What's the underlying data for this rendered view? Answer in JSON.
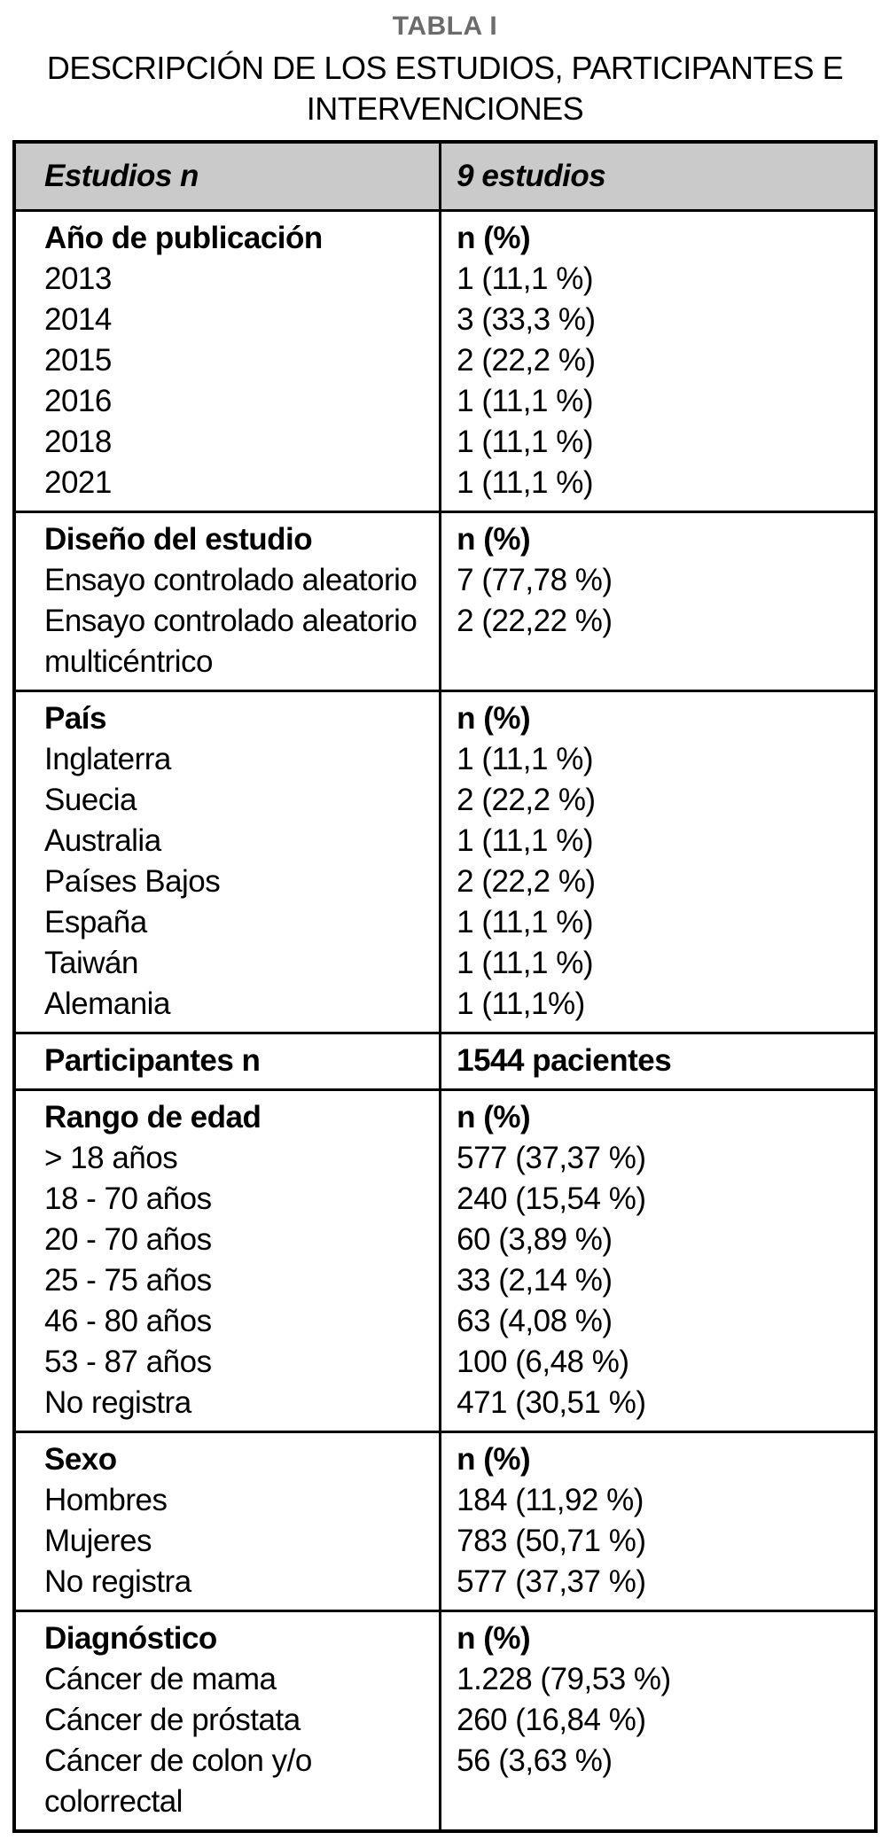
{
  "title": "TABLA I",
  "subtitle_lines": [
    "DESCRIPCIÓN DE LOS ESTUDIOS, PARTICIPANTES E",
    "INTERVENCIONES"
  ],
  "colors": {
    "header_bg": "#cacaca",
    "title_gray": "#6b6b6b",
    "border": "#000000"
  },
  "table": {
    "header": {
      "left": "Estudios n",
      "right": "9 estudios"
    },
    "sections": [
      {
        "label": "Año de publicación",
        "value_label": "n (%)",
        "items": [
          "2013",
          "2014",
          "2015",
          "2016",
          "2018",
          "2021"
        ],
        "values": [
          "1 (11,1 %)",
          "3 (33,3 %)",
          "2 (22,2 %)",
          "1 (11,1 %)",
          "1 (11,1 %)",
          "1 (11,1 %)"
        ]
      },
      {
        "label": "Diseño del estudio",
        "value_label": "n (%)",
        "items": [
          "Ensayo controlado aleatorio",
          "Ensayo controlado aleatorio multicéntrico"
        ],
        "values": [
          "7 (77,78 %)",
          "2 (22,22 %)"
        ]
      },
      {
        "label": "País",
        "value_label": "n (%)",
        "items": [
          "Inglaterra",
          "Suecia",
          "Australia",
          "Países Bajos",
          "España",
          "Taiwán",
          "Alemania"
        ],
        "values": [
          "1 (11,1 %)",
          "2 (22,2 %)",
          "1 (11,1 %)",
          "2 (22,2 %)",
          "1 (11,1 %)",
          "1 (11,1 %)",
          "1 (11,1%)"
        ]
      },
      {
        "label": "Participantes n",
        "value_label": "1544 pacientes",
        "items": [],
        "values": []
      },
      {
        "label": "Rango de edad",
        "value_label": "n (%)",
        "items": [
          "> 18 años",
          "18 - 70 años",
          "20 - 70 años",
          "25 - 75 años",
          "46 - 80 años",
          "53 - 87 años",
          "No registra"
        ],
        "values": [
          "577 (37,37 %)",
          "240 (15,54 %)",
          "60 (3,89 %)",
          "33 (2,14 %)",
          "63 (4,08 %)",
          "100 (6,48 %)",
          "471 (30,51 %)"
        ]
      },
      {
        "label": "Sexo",
        "value_label": "n (%)",
        "items": [
          "Hombres",
          "Mujeres",
          "No registra"
        ],
        "values": [
          "184 (11,92 %)",
          "783 (50,71 %)",
          "577 (37,37 %)"
        ]
      },
      {
        "label": "Diagnóstico",
        "value_label": "n (%)",
        "items": [
          "Cáncer de mama",
          "Cáncer de próstata",
          "Cáncer de colon y/o colorrectal"
        ],
        "values": [
          "1.228 (79,53 %)",
          "260 (16,84 %)",
          "56 (3,63 %)"
        ]
      }
    ]
  }
}
